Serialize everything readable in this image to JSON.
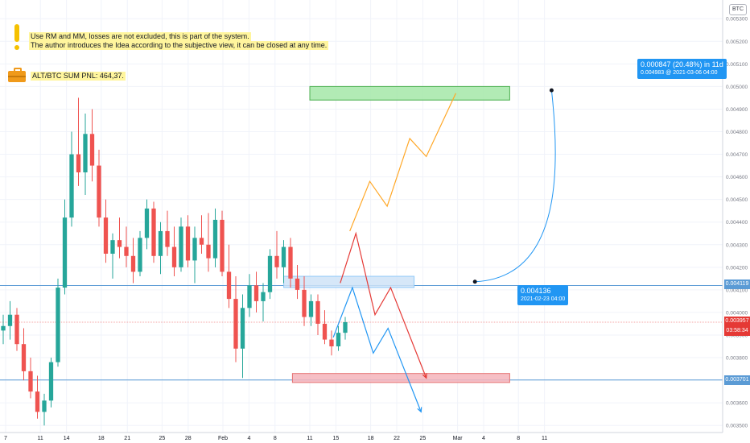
{
  "notes": {
    "line1": "Use RM and MM, losses are not excluded, this is part of the system.",
    "line2": "The author introduces the Idea according to the subjective view, it can be closed at any time.",
    "pnl": "ALT/BTC SUM PNL: 464,37."
  },
  "icons": {
    "warning": "exclamation-icon",
    "portfolio": "briefcase-icon"
  },
  "axis": {
    "currency_badge": "BTC"
  },
  "callouts": {
    "entry": {
      "price": "0.004136",
      "date": "2021-02-23 04:00"
    },
    "target": {
      "gain": "0.000847 (20.48%) in 11d",
      "detail": "0.004983 @ 2021-03-06  04:00"
    }
  },
  "price_tags": {
    "resistance": "0.004119",
    "current": "0.003957",
    "countdown": "03:58:34",
    "support": "0.003701"
  },
  "colors": {
    "up_candle": "#26a69a",
    "down_candle": "#ef5350",
    "target_zone": "#a5e8a8",
    "entry_zone": "#cfe3f7",
    "stop_zone": "#f5b4bb",
    "blue_path": "#2196f3",
    "red_path": "#e53935",
    "orange_path": "#ffa726",
    "level_line": "#5b9bd5"
  },
  "chart_data": {
    "type": "candlestick",
    "symbol_quote": "BTC",
    "x_tick_labels": [
      "7",
      "11",
      "14",
      "18",
      "21",
      "25",
      "28",
      "Feb",
      "4",
      "8",
      "11",
      "15",
      "18",
      "22",
      "25",
      "Mar",
      "4",
      "8",
      "11"
    ],
    "y_tick_labels": [
      "0.005300",
      "0.005200",
      "0.005100",
      "0.005000",
      "0.004900",
      "0.004800",
      "0.004700",
      "0.004600",
      "0.004500",
      "0.004400",
      "0.004300",
      "0.004200",
      "0.004100",
      "0.004000",
      "0.003900",
      "0.003800",
      "0.003700",
      "0.003600",
      "0.003500"
    ],
    "ylim": [
      0.00349,
      0.00534
    ],
    "horizontal_levels": [
      0.004119,
      0.003701
    ],
    "current_price": 0.003957,
    "zones": [
      {
        "name": "target",
        "x_start": "Feb 11",
        "x_end": "Mar 6",
        "y_low": 0.00494,
        "y_high": 0.005
      },
      {
        "name": "entry",
        "x_start": "Feb 8",
        "x_end": "Feb 23",
        "y_low": 0.00411,
        "y_high": 0.00416
      },
      {
        "name": "stop",
        "x_start": "Feb 9",
        "x_end": "Mar 6",
        "y_low": 0.00369,
        "y_high": 0.00373
      }
    ],
    "scenario_paths": [
      {
        "color": "orange",
        "points": [
          [
            8.6,
            0.00436
          ],
          [
            10.9,
            0.00458
          ],
          [
            12.9,
            0.00447
          ],
          [
            15.5,
            0.00477
          ],
          [
            17.4,
            0.00469
          ],
          [
            20.8,
            0.00497
          ]
        ]
      },
      {
        "color": "red",
        "points": [
          [
            7.5,
            0.00413
          ],
          [
            9.3,
            0.00435
          ],
          [
            11.5,
            0.00399
          ],
          [
            13.3,
            0.00411
          ],
          [
            17.4,
            0.00371
          ]
        ]
      },
      {
        "color": "blue",
        "points": [
          [
            6.7,
            0.00389
          ],
          [
            8.9,
            0.00411
          ],
          [
            11.3,
            0.00382
          ],
          [
            13.0,
            0.00393
          ],
          [
            16.8,
            0.00356
          ]
        ]
      }
    ],
    "projection_arc": {
      "from": [
        23.0,
        0.004136
      ],
      "to": [
        32.0,
        0.004983
      ]
    },
    "candles": [
      {
        "t": 0,
        "o": 0.00392,
        "h": 0.00399,
        "l": 0.00386,
        "c": 0.00394
      },
      {
        "t": 1,
        "o": 0.00394,
        "h": 0.00405,
        "l": 0.00388,
        "c": 0.00399
      },
      {
        "t": 2,
        "o": 0.00399,
        "h": 0.00402,
        "l": 0.00383,
        "c": 0.00386
      },
      {
        "t": 3,
        "o": 0.00386,
        "h": 0.00393,
        "l": 0.0037,
        "c": 0.00374
      },
      {
        "t": 4,
        "o": 0.00374,
        "h": 0.0038,
        "l": 0.00362,
        "c": 0.00365
      },
      {
        "t": 5,
        "o": 0.00365,
        "h": 0.00372,
        "l": 0.00353,
        "c": 0.00356
      },
      {
        "t": 6,
        "o": 0.00356,
        "h": 0.00364,
        "l": 0.0035,
        "c": 0.00361
      },
      {
        "t": 7,
        "o": 0.00361,
        "h": 0.0038,
        "l": 0.00358,
        "c": 0.00378
      },
      {
        "t": 8,
        "o": 0.00378,
        "h": 0.00415,
        "l": 0.00376,
        "c": 0.00411
      },
      {
        "t": 9,
        "o": 0.00411,
        "h": 0.0045,
        "l": 0.00408,
        "c": 0.00442
      },
      {
        "t": 10,
        "o": 0.00442,
        "h": 0.0048,
        "l": 0.00438,
        "c": 0.0047
      },
      {
        "t": 11,
        "o": 0.0047,
        "h": 0.00495,
        "l": 0.00456,
        "c": 0.00462
      },
      {
        "t": 12,
        "o": 0.00462,
        "h": 0.00488,
        "l": 0.00452,
        "c": 0.00479
      },
      {
        "t": 13,
        "o": 0.00479,
        "h": 0.0049,
        "l": 0.00458,
        "c": 0.00465
      },
      {
        "t": 14,
        "o": 0.00465,
        "h": 0.00472,
        "l": 0.00438,
        "c": 0.00442
      },
      {
        "t": 15,
        "o": 0.00442,
        "h": 0.0045,
        "l": 0.00422,
        "c": 0.00426
      },
      {
        "t": 16,
        "o": 0.00426,
        "h": 0.00435,
        "l": 0.00415,
        "c": 0.00432
      },
      {
        "t": 17,
        "o": 0.00432,
        "h": 0.00442,
        "l": 0.00424,
        "c": 0.00429
      },
      {
        "t": 18,
        "o": 0.00429,
        "h": 0.00438,
        "l": 0.0042,
        "c": 0.00425
      },
      {
        "t": 19,
        "o": 0.00425,
        "h": 0.00433,
        "l": 0.00413,
        "c": 0.00418
      },
      {
        "t": 20,
        "o": 0.00418,
        "h": 0.00436,
        "l": 0.00416,
        "c": 0.00433
      },
      {
        "t": 21,
        "o": 0.00433,
        "h": 0.0045,
        "l": 0.00428,
        "c": 0.00446
      },
      {
        "t": 22,
        "o": 0.00446,
        "h": 0.00449,
        "l": 0.00422,
        "c": 0.00425
      },
      {
        "t": 23,
        "o": 0.00425,
        "h": 0.0044,
        "l": 0.00417,
        "c": 0.00436
      },
      {
        "t": 24,
        "o": 0.00436,
        "h": 0.00445,
        "l": 0.00425,
        "c": 0.00429
      },
      {
        "t": 25,
        "o": 0.00429,
        "h": 0.00438,
        "l": 0.00416,
        "c": 0.0042
      },
      {
        "t": 26,
        "o": 0.0042,
        "h": 0.00442,
        "l": 0.00418,
        "c": 0.00438
      },
      {
        "t": 27,
        "o": 0.00438,
        "h": 0.00443,
        "l": 0.0042,
        "c": 0.00423
      },
      {
        "t": 28,
        "o": 0.00423,
        "h": 0.00438,
        "l": 0.00413,
        "c": 0.00433
      },
      {
        "t": 29,
        "o": 0.00433,
        "h": 0.00443,
        "l": 0.00426,
        "c": 0.0043
      },
      {
        "t": 30,
        "o": 0.0043,
        "h": 0.00444,
        "l": 0.00418,
        "c": 0.00424
      },
      {
        "t": 31,
        "o": 0.00424,
        "h": 0.00446,
        "l": 0.0042,
        "c": 0.00441
      },
      {
        "t": 32,
        "o": 0.00441,
        "h": 0.00445,
        "l": 0.00416,
        "c": 0.00418
      },
      {
        "t": 33,
        "o": 0.00418,
        "h": 0.0043,
        "l": 0.00402,
        "c": 0.00406
      },
      {
        "t": 34,
        "o": 0.00406,
        "h": 0.00416,
        "l": 0.00378,
        "c": 0.00384
      },
      {
        "t": 35,
        "o": 0.00384,
        "h": 0.00408,
        "l": 0.00371,
        "c": 0.00402
      },
      {
        "t": 36,
        "o": 0.00402,
        "h": 0.00417,
        "l": 0.00398,
        "c": 0.00412
      },
      {
        "t": 37,
        "o": 0.00412,
        "h": 0.00418,
        "l": 0.004,
        "c": 0.00405
      },
      {
        "t": 38,
        "o": 0.00405,
        "h": 0.00413,
        "l": 0.00396,
        "c": 0.00409
      },
      {
        "t": 39,
        "o": 0.00409,
        "h": 0.00428,
        "l": 0.00406,
        "c": 0.00425
      },
      {
        "t": 40,
        "o": 0.00425,
        "h": 0.00436,
        "l": 0.00415,
        "c": 0.0042
      },
      {
        "t": 41,
        "o": 0.0042,
        "h": 0.00432,
        "l": 0.00413,
        "c": 0.00429
      },
      {
        "t": 42,
        "o": 0.00429,
        "h": 0.00433,
        "l": 0.00411,
        "c": 0.00415
      },
      {
        "t": 43,
        "o": 0.00415,
        "h": 0.00421,
        "l": 0.00406,
        "c": 0.0041
      },
      {
        "t": 44,
        "o": 0.0041,
        "h": 0.00416,
        "l": 0.00394,
        "c": 0.00398
      },
      {
        "t": 45,
        "o": 0.00398,
        "h": 0.00408,
        "l": 0.00394,
        "c": 0.00405
      },
      {
        "t": 46,
        "o": 0.00405,
        "h": 0.00408,
        "l": 0.0039,
        "c": 0.00395
      },
      {
        "t": 47,
        "o": 0.00395,
        "h": 0.00401,
        "l": 0.00386,
        "c": 0.00388
      },
      {
        "t": 48,
        "o": 0.00388,
        "h": 0.00392,
        "l": 0.00381,
        "c": 0.00385
      },
      {
        "t": 49,
        "o": 0.00385,
        "h": 0.00394,
        "l": 0.00383,
        "c": 0.00391
      },
      {
        "t": 50,
        "o": 0.00391,
        "h": 0.00398,
        "l": 0.00388,
        "c": 0.003957
      }
    ]
  }
}
